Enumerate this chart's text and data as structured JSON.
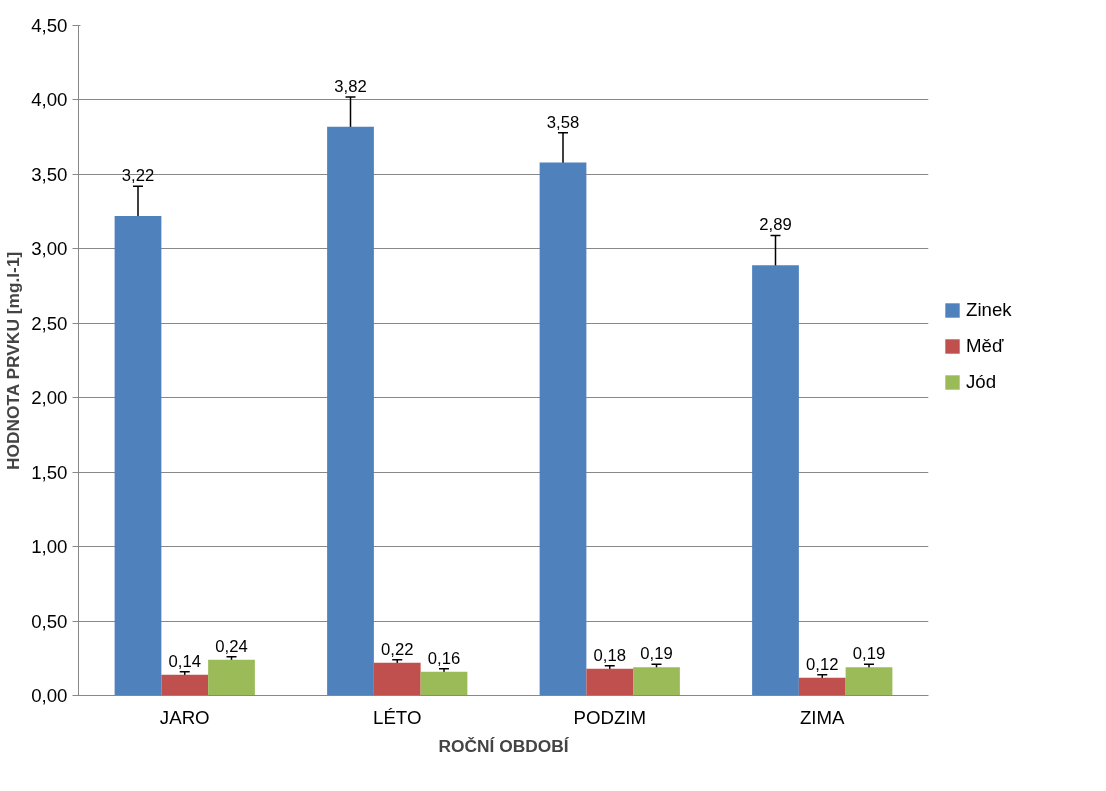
{
  "chart_data": {
    "type": "bar",
    "xlabel": "ROČNÍ OBDOBÍ",
    "ylabel": "HODNOTA PRVKU [mg.l-1]",
    "categories": [
      "JARO",
      "LÉTO",
      "PODZIM",
      "ZIMA"
    ],
    "series": [
      {
        "name": "Zinek",
        "color": "#4f81bd",
        "values": [
          3.22,
          3.82,
          3.58,
          2.89
        ],
        "errors": [
          0.2,
          0.2,
          0.2,
          0.2
        ],
        "value_labels": [
          "3,22",
          "3,82",
          "3,58",
          "2,89"
        ]
      },
      {
        "name": "Měď",
        "color": "#c0504d",
        "values": [
          0.14,
          0.22,
          0.18,
          0.12
        ],
        "errors": [
          0.02,
          0.02,
          0.02,
          0.02
        ],
        "value_labels": [
          "0,14",
          "0,22",
          "0,18",
          "0,12"
        ]
      },
      {
        "name": "Jód",
        "color": "#9bbb59",
        "values": [
          0.24,
          0.16,
          0.19,
          0.19
        ],
        "errors": [
          0.02,
          0.02,
          0.02,
          0.02
        ],
        "value_labels": [
          "0,24",
          "0,16",
          "0,19",
          "0,19"
        ]
      }
    ],
    "ylim": [
      0,
      4.5
    ],
    "yticks": [
      {
        "value": 0,
        "label": "0,00"
      },
      {
        "value": 0.5,
        "label": "0,50"
      },
      {
        "value": 1,
        "label": "1,00"
      },
      {
        "value": 1.5,
        "label": "1,50"
      },
      {
        "value": 2,
        "label": "2,00"
      },
      {
        "value": 2.5,
        "label": "2,50"
      },
      {
        "value": 3,
        "label": "3,00"
      },
      {
        "value": 3.5,
        "label": "3,50"
      },
      {
        "value": 4,
        "label": "4,00"
      },
      {
        "value": 4.5,
        "label": "4,50"
      }
    ],
    "grid": "y",
    "legend": "right"
  }
}
